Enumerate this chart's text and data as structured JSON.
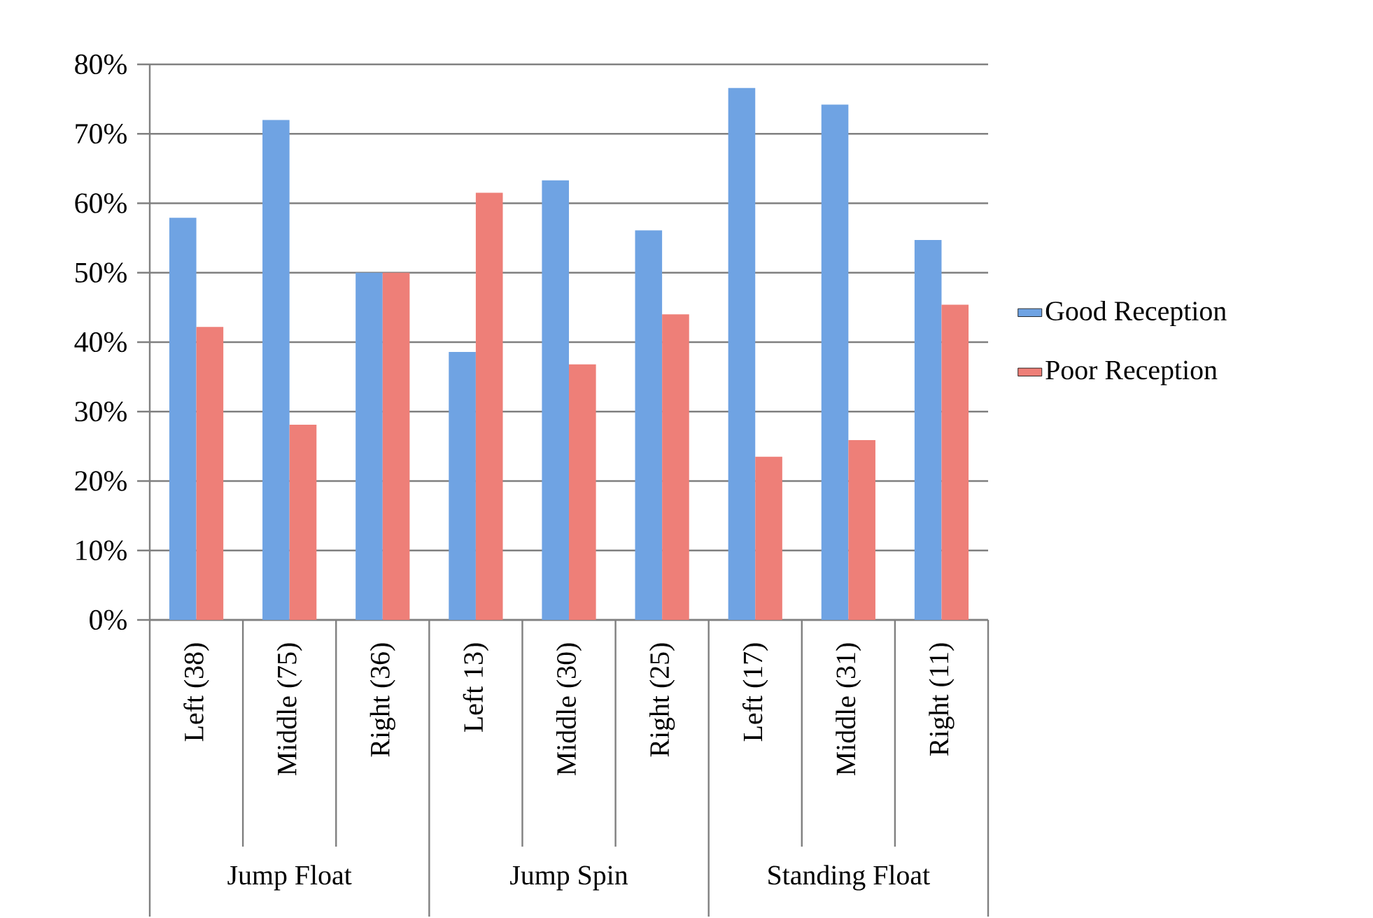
{
  "chart_data": {
    "type": "bar",
    "categories": [
      "Left (38)",
      "Middle (75)",
      "Right (36)",
      "Left 13)",
      "Middle (30)",
      "Right (25)",
      "Left (17)",
      "Middle (31)",
      "Right (11)"
    ],
    "series": [
      {
        "name": "Good Reception",
        "color": "#6fa3e3",
        "values": [
          57.9,
          72.0,
          50.0,
          38.6,
          63.3,
          56.1,
          76.6,
          74.2,
          54.7
        ]
      },
      {
        "name": "Poor Reception",
        "color": "#ee7f78",
        "values": [
          42.2,
          28.1,
          50.0,
          61.5,
          36.8,
          44.0,
          23.5,
          25.9,
          45.4
        ]
      }
    ],
    "annotations": [
      "Jump Float",
      "Jump Spin",
      "Standing Float"
    ],
    "ylim": [
      0,
      80
    ],
    "yticks": [
      {
        "value": 0,
        "label": "0%"
      },
      {
        "value": 10,
        "label": "10%"
      },
      {
        "value": 20,
        "label": "20%"
      },
      {
        "value": 30,
        "label": "30%"
      },
      {
        "value": 40,
        "label": "40%"
      },
      {
        "value": 50,
        "label": "50%"
      },
      {
        "value": 60,
        "label": "60%"
      },
      {
        "value": 70,
        "label": "70%"
      },
      {
        "value": 80,
        "label": "80%"
      }
    ],
    "grid": "y",
    "legend": "right"
  }
}
